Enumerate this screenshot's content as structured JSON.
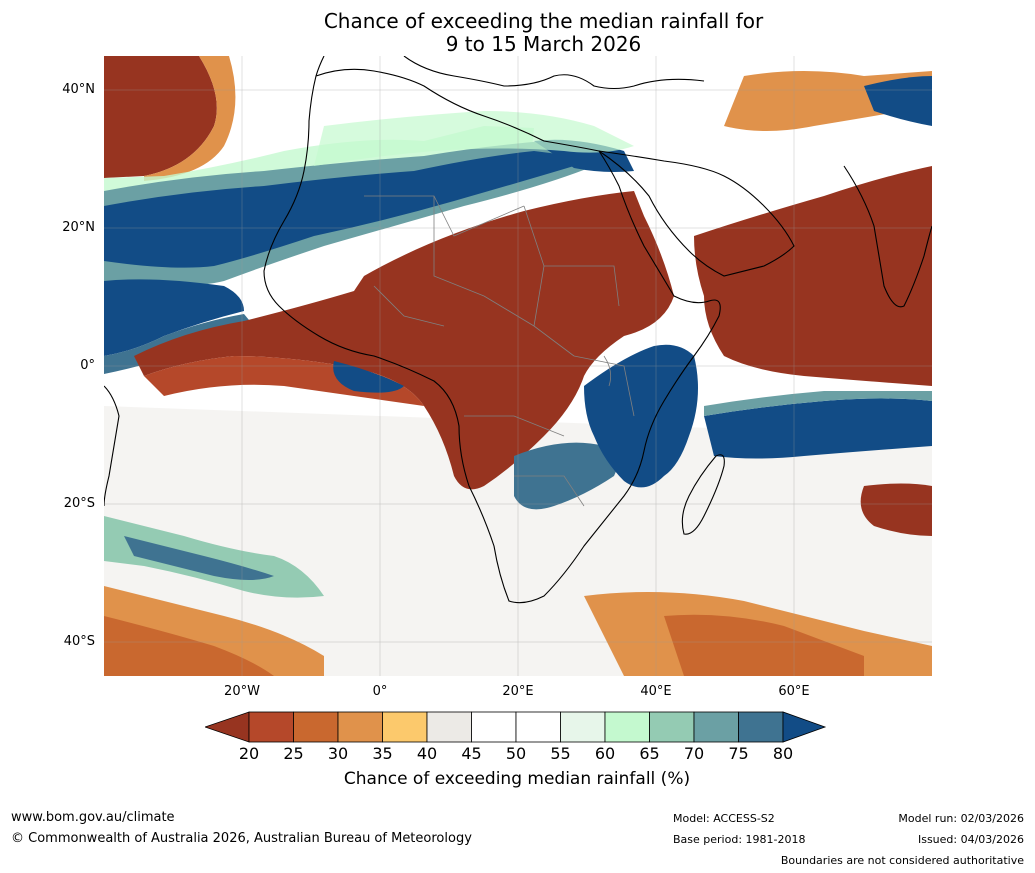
{
  "title": {
    "line1": "Chance of exceeding the median rainfall for",
    "line2": "9 to 15 March 2026"
  },
  "map": {
    "lat_ticks": [
      "40°N",
      "20°N",
      "0°",
      "20°S",
      "40°S"
    ],
    "lon_ticks": [
      "20°W",
      "0°",
      "20°E",
      "40°E",
      "60°E"
    ],
    "lon_range": [
      -40,
      80
    ],
    "lat_range": [
      -45,
      45
    ]
  },
  "colorbar": {
    "ticks": [
      "20",
      "25",
      "30",
      "35",
      "40",
      "45",
      "50",
      "55",
      "60",
      "65",
      "70",
      "75",
      "80"
    ],
    "colors": [
      "#973420",
      "#b5482a",
      "#c9682f",
      "#e0924b",
      "#fcc96c",
      "#eceae6",
      "#ffffff",
      "#ffffff",
      "#e7f6ea",
      "#c4f9cf",
      "#94cbb3",
      "#6ba0a4",
      "#3f7391",
      "#124c86"
    ],
    "label": "Chance of exceeding median rainfall (%)"
  },
  "footer": {
    "website": "www.bom.gov.au/climate",
    "copyright": "© Commonwealth of Australia 2026, Australian Bureau of Meteorology",
    "model": "Model: ACCESS-S2",
    "base_period": "Base period: 1981-2018",
    "model_run": "Model run: 02/03/2026",
    "issued": "Issued: 04/03/2026",
    "disclaimer": "Boundaries are not considered authoritative"
  }
}
